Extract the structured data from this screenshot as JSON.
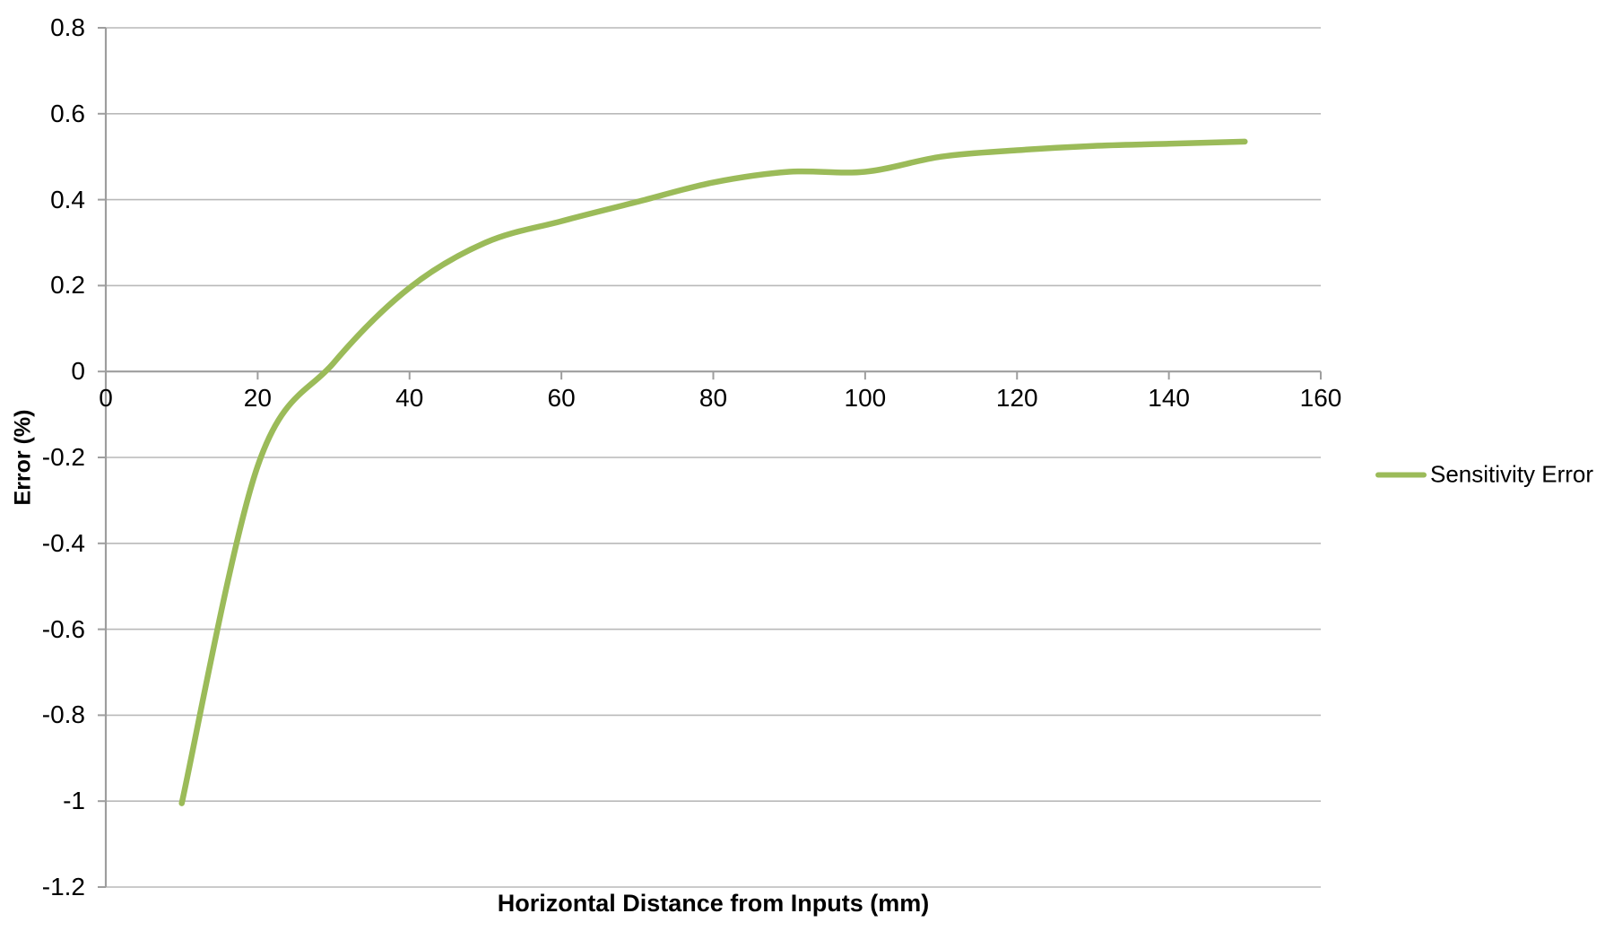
{
  "colors": {
    "background": "#FFFFFF",
    "line": "#9BBB59",
    "gridline": "#B9B9B9",
    "axis": "#9E9E9E",
    "text": "#000000"
  },
  "chart_data": {
    "type": "line",
    "title": "",
    "xlabel": "Horizontal Distance from Inputs (mm)",
    "ylabel": "Error (%)",
    "xlim": [
      0,
      160
    ],
    "ylim": [
      -1.2,
      0.8
    ],
    "x_ticks": [
      0,
      20,
      40,
      60,
      80,
      100,
      120,
      140,
      160
    ],
    "x_tick_labels": [
      "0",
      "20",
      "40",
      "60",
      "80",
      "100",
      "120",
      "140",
      "160"
    ],
    "y_ticks": [
      0.8,
      0.6,
      0.4,
      0.2,
      0,
      -0.2,
      -0.4,
      -0.6,
      -0.8,
      -1,
      -1.2
    ],
    "y_tick_labels": [
      "0.8",
      "0.6",
      "0.4",
      "0.2",
      "0",
      "-0.2",
      "-0.4",
      "-0.6",
      "-0.8",
      "-1",
      "-1.2"
    ],
    "grid": "horizontal",
    "legend_position": "right",
    "smooth": true,
    "x": [
      10,
      20,
      30,
      40,
      50,
      60,
      70,
      80,
      90,
      100,
      110,
      120,
      130,
      140,
      150
    ],
    "series": [
      {
        "name": "Sensitivity Error",
        "values": [
          -1.005,
          -0.22,
          0.02,
          0.195,
          0.3,
          0.35,
          0.395,
          0.44,
          0.465,
          0.465,
          0.5,
          0.515,
          0.525,
          0.53,
          0.535
        ]
      }
    ]
  }
}
